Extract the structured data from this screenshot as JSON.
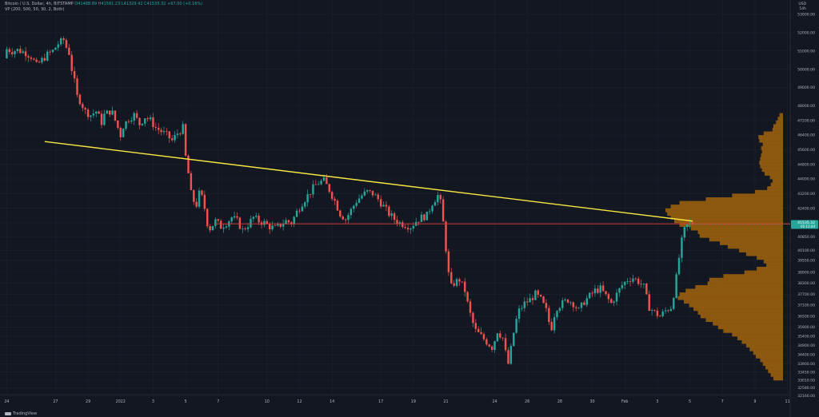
{
  "header": {
    "symbol": "Bitcoin / U.S. Dollar, 4h, BITSTAMP",
    "ohlc": "O41488.89 H41581.23 L41329.42 C41535.32 +67.00 (+0.16%)",
    "indicator": "VP (200, 500, 50, 30, 2, Both)"
  },
  "currency": "USD",
  "currency_sub": "54h",
  "logo_text": "TradingView",
  "colors": {
    "background": "#131722",
    "up": "#26a69a",
    "down": "#ef5350",
    "trendline": "#f5e642",
    "hline": "#e53935",
    "volume_profile": "#9a5f0e",
    "price_label": "#26a69a"
  },
  "chart_data": {
    "type": "candlestick",
    "timeframe": "4h",
    "ylim": [
      32300,
      53000
    ],
    "y_ticks": [
      53000,
      52000,
      51000,
      50000,
      49000,
      48000,
      47200,
      46400,
      45600,
      44800,
      44000,
      43200,
      42400,
      41600,
      40850,
      40100,
      39550,
      38900,
      38300,
      37700,
      37100,
      36500,
      35900,
      35400,
      34900,
      34400,
      33900,
      33450,
      33010,
      32580,
      32160
    ],
    "y_tick_labels": [
      "53000.00",
      "52000.00",
      "51000.00",
      "50000.00",
      "49000.00",
      "48000.00",
      "47200.00",
      "46400.00",
      "45600.00",
      "44800.00",
      "44000.00",
      "43200.00",
      "42400.00",
      "41600.00",
      "40850.00",
      "40100.00",
      "39550.00",
      "38900.00",
      "38300.00",
      "37700.00",
      "37100.00",
      "36500.00",
      "35900.00",
      "35400.00",
      "34900.00",
      "34400.00",
      "33900.00",
      "33450.00",
      "33010.00",
      "32580.00",
      "32160.00"
    ],
    "x_ticks": [
      {
        "label": "24",
        "x": 0
      },
      {
        "label": "27",
        "x": 18
      },
      {
        "label": "29",
        "x": 30
      },
      {
        "label": "2022",
        "x": 42
      },
      {
        "label": "3",
        "x": 54
      },
      {
        "label": "5",
        "x": 66
      },
      {
        "label": "7",
        "x": 78
      },
      {
        "label": "10",
        "x": 96
      },
      {
        "label": "12",
        "x": 108
      },
      {
        "label": "14",
        "x": 120
      },
      {
        "label": "17",
        "x": 138
      },
      {
        "label": "19",
        "x": 150
      },
      {
        "label": "21",
        "x": 162
      },
      {
        "label": "24",
        "x": 180
      },
      {
        "label": "26",
        "x": 192
      },
      {
        "label": "28",
        "x": 204
      },
      {
        "label": "30",
        "x": 216
      },
      {
        "label": "Feb",
        "x": 228
      },
      {
        "label": "3",
        "x": 240
      },
      {
        "label": "5",
        "x": 252
      },
      {
        "label": "7",
        "x": 264
      },
      {
        "label": "9",
        "x": 276
      },
      {
        "label": "11",
        "x": 288
      }
    ],
    "xlim": [
      -1,
      289
    ],
    "last_price": "41535.32",
    "last_price_sub": "01:11:44",
    "horizontal_line": 41550,
    "trendline": {
      "x1": 14,
      "y1": 46050,
      "x2": 253,
      "y2": 41700
    },
    "path": [
      [
        0,
        50600
      ],
      [
        1,
        51100
      ],
      [
        3,
        51000
      ],
      [
        5,
        51050
      ],
      [
        8,
        50900
      ],
      [
        10,
        50700
      ],
      [
        12,
        50200
      ],
      [
        14,
        50500
      ],
      [
        16,
        50800
      ],
      [
        18,
        51000
      ],
      [
        20,
        51400
      ],
      [
        22,
        51600
      ],
      [
        23,
        51200
      ],
      [
        24,
        50900
      ],
      [
        25,
        50000
      ],
      [
        26,
        49300
      ],
      [
        27,
        48500
      ],
      [
        28,
        48300
      ],
      [
        30,
        47700
      ],
      [
        32,
        47500
      ],
      [
        34,
        47700
      ],
      [
        36,
        47100
      ],
      [
        37,
        47500
      ],
      [
        39,
        47700
      ],
      [
        40,
        47600
      ],
      [
        41,
        47200
      ],
      [
        42,
        46800
      ],
      [
        43,
        46400
      ],
      [
        44,
        46900
      ],
      [
        46,
        47300
      ],
      [
        48,
        47500
      ],
      [
        50,
        47000
      ],
      [
        52,
        47400
      ],
      [
        54,
        47200
      ],
      [
        56,
        46800
      ],
      [
        58,
        46600
      ],
      [
        60,
        46400
      ],
      [
        62,
        46100
      ],
      [
        64,
        46500
      ],
      [
        66,
        46800
      ],
      [
        67,
        45200
      ],
      [
        68,
        44300
      ],
      [
        69,
        43200
      ],
      [
        70,
        42800
      ],
      [
        71,
        42600
      ],
      [
        72,
        43200
      ],
      [
        73,
        43000
      ],
      [
        74,
        42400
      ],
      [
        75,
        41600
      ],
      [
        76,
        41300
      ],
      [
        77,
        41500
      ],
      [
        78,
        41700
      ],
      [
        80,
        41400
      ],
      [
        82,
        41600
      ],
      [
        84,
        41900
      ],
      [
        86,
        41700
      ],
      [
        88,
        41200
      ],
      [
        90,
        41500
      ],
      [
        92,
        41900
      ],
      [
        94,
        41700
      ],
      [
        96,
        41600
      ],
      [
        98,
        41400
      ],
      [
        100,
        41300
      ],
      [
        102,
        41500
      ],
      [
        104,
        41700
      ],
      [
        106,
        41600
      ],
      [
        108,
        42200
      ],
      [
        110,
        42700
      ],
      [
        112,
        43100
      ],
      [
        114,
        43500
      ],
      [
        116,
        43800
      ],
      [
        118,
        43900
      ],
      [
        120,
        43400
      ],
      [
        122,
        42800
      ],
      [
        124,
        42100
      ],
      [
        126,
        41800
      ],
      [
        128,
        42300
      ],
      [
        130,
        42800
      ],
      [
        132,
        43100
      ],
      [
        134,
        43300
      ],
      [
        136,
        43200
      ],
      [
        138,
        42900
      ],
      [
        140,
        42500
      ],
      [
        142,
        42100
      ],
      [
        144,
        41800
      ],
      [
        146,
        41600
      ],
      [
        148,
        41500
      ],
      [
        150,
        41400
      ],
      [
        152,
        41700
      ],
      [
        154,
        41900
      ],
      [
        156,
        42000
      ],
      [
        158,
        42700
      ],
      [
        160,
        43100
      ],
      [
        161,
        42700
      ],
      [
        162,
        41600
      ],
      [
        163,
        40200
      ],
      [
        164,
        38800
      ],
      [
        165,
        38100
      ],
      [
        166,
        38300
      ],
      [
        168,
        38500
      ],
      [
        170,
        37900
      ],
      [
        171,
        37200
      ],
      [
        172,
        36600
      ],
      [
        173,
        36100
      ],
      [
        174,
        35700
      ],
      [
        176,
        35400
      ],
      [
        178,
        35100
      ],
      [
        180,
        34800
      ],
      [
        181,
        35200
      ],
      [
        182,
        35700
      ],
      [
        184,
        35300
      ],
      [
        185,
        34500
      ],
      [
        186,
        33900
      ],
      [
        187,
        34700
      ],
      [
        188,
        35600
      ],
      [
        189,
        36300
      ],
      [
        190,
        36800
      ],
      [
        192,
        37200
      ],
      [
        194,
        37400
      ],
      [
        196,
        37700
      ],
      [
        198,
        37400
      ],
      [
        200,
        36800
      ],
      [
        201,
        36200
      ],
      [
        202,
        35900
      ],
      [
        203,
        36600
      ],
      [
        204,
        37000
      ],
      [
        206,
        37200
      ],
      [
        208,
        37400
      ],
      [
        210,
        37200
      ],
      [
        212,
        36800
      ],
      [
        214,
        37300
      ],
      [
        216,
        37600
      ],
      [
        218,
        37900
      ],
      [
        220,
        38000
      ],
      [
        222,
        37600
      ],
      [
        224,
        37200
      ],
      [
        226,
        37700
      ],
      [
        228,
        38200
      ],
      [
        230,
        38500
      ],
      [
        232,
        38600
      ],
      [
        234,
        38400
      ],
      [
        236,
        38100
      ],
      [
        237,
        37500
      ],
      [
        238,
        37000
      ],
      [
        240,
        36700
      ],
      [
        242,
        36500
      ],
      [
        244,
        36800
      ],
      [
        246,
        37000
      ],
      [
        247,
        37700
      ],
      [
        248,
        38600
      ],
      [
        249,
        39700
      ],
      [
        250,
        40600
      ],
      [
        251,
        41200
      ],
      [
        252,
        41450
      ],
      [
        253,
        41535
      ]
    ],
    "volume_profile": {
      "bins": [
        [
          47500,
          4
        ],
        [
          47300,
          6
        ],
        [
          47100,
          8
        ],
        [
          46900,
          11
        ],
        [
          46700,
          12
        ],
        [
          46500,
          22
        ],
        [
          46300,
          28
        ],
        [
          46100,
          27
        ],
        [
          45900,
          23
        ],
        [
          45700,
          25
        ],
        [
          45500,
          24
        ],
        [
          45300,
          25
        ],
        [
          45100,
          26
        ],
        [
          44900,
          27
        ],
        [
          44700,
          26
        ],
        [
          44500,
          24
        ],
        [
          44300,
          21
        ],
        [
          44100,
          15
        ],
        [
          43900,
          12
        ],
        [
          43700,
          14
        ],
        [
          43500,
          18
        ],
        [
          43300,
          32
        ],
        [
          43100,
          58
        ],
        [
          42900,
          88
        ],
        [
          42700,
          118
        ],
        [
          42500,
          128
        ],
        [
          42300,
          134
        ],
        [
          42100,
          132
        ],
        [
          41900,
          128
        ],
        [
          41700,
          124
        ],
        [
          41500,
          118
        ],
        [
          41300,
          105
        ],
        [
          41100,
          97
        ],
        [
          40900,
          95
        ],
        [
          40700,
          84
        ],
        [
          40500,
          72
        ],
        [
          40300,
          63
        ],
        [
          40100,
          50
        ],
        [
          39900,
          42
        ],
        [
          39700,
          30
        ],
        [
          39500,
          22
        ],
        [
          39300,
          19
        ],
        [
          39100,
          30
        ],
        [
          38900,
          44
        ],
        [
          38700,
          68
        ],
        [
          38500,
          84
        ],
        [
          38300,
          86
        ],
        [
          38100,
          100
        ],
        [
          37900,
          111
        ],
        [
          37700,
          118
        ],
        [
          37500,
          120
        ],
        [
          37300,
          113
        ],
        [
          37100,
          107
        ],
        [
          36900,
          102
        ],
        [
          36700,
          97
        ],
        [
          36500,
          94
        ],
        [
          36300,
          88
        ],
        [
          36100,
          80
        ],
        [
          35900,
          74
        ],
        [
          35700,
          68
        ],
        [
          35500,
          58
        ],
        [
          35300,
          52
        ],
        [
          35100,
          47
        ],
        [
          34900,
          42
        ],
        [
          34700,
          38
        ],
        [
          34500,
          34
        ],
        [
          34300,
          31
        ],
        [
          34100,
          26
        ],
        [
          33900,
          23
        ],
        [
          33700,
          20
        ],
        [
          33500,
          17
        ],
        [
          33300,
          14
        ],
        [
          33100,
          11
        ]
      ]
    }
  }
}
